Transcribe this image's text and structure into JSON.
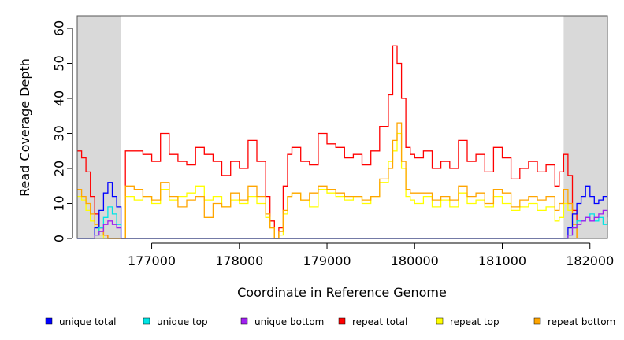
{
  "chart_data": {
    "type": "line",
    "title": "",
    "xlabel": "Coordinate in Reference Genome",
    "ylabel": "Read Coverage Depth",
    "xlim": [
      176150,
      182200
    ],
    "ylim": [
      0,
      64
    ],
    "x_ticks": [
      177000,
      178000,
      179000,
      180000,
      181000,
      182000
    ],
    "x_tick_labels": [
      "177000",
      "178000",
      "179000",
      "180000",
      "181000",
      "182000"
    ],
    "y_ticks": [
      0,
      10,
      20,
      30,
      40,
      50,
      60
    ],
    "y_tick_labels": [
      "0",
      "10",
      "20",
      "30",
      "40",
      "50",
      "60"
    ],
    "shaded_regions": [
      {
        "x": [
          176150,
          176650
        ],
        "color": "#d9d9d9"
      },
      {
        "x": [
          181700,
          182200
        ],
        "color": "#d9d9d9"
      }
    ],
    "legend_position": "bottom",
    "series": [
      {
        "name": "repeat total",
        "color": "#ff0000",
        "x": [
          176150,
          176200,
          176250,
          176300,
          176350,
          176400,
          176450,
          176500,
          176550,
          176600,
          176650,
          176700,
          176800,
          176900,
          177000,
          177100,
          177200,
          177300,
          177400,
          177500,
          177600,
          177700,
          177800,
          177900,
          178000,
          178100,
          178200,
          178300,
          178350,
          178400,
          178450,
          178500,
          178550,
          178600,
          178700,
          178800,
          178900,
          179000,
          179100,
          179200,
          179300,
          179400,
          179500,
          179600,
          179700,
          179750,
          179800,
          179850,
          179900,
          179950,
          180000,
          180100,
          180200,
          180300,
          180400,
          180500,
          180600,
          180700,
          180800,
          180900,
          181000,
          181100,
          181200,
          181300,
          181400,
          181500,
          181600,
          181650,
          181700,
          181750,
          181800,
          181850
        ],
        "values": [
          25,
          23,
          19,
          12,
          7,
          3,
          1,
          0,
          0,
          0,
          0,
          25,
          25,
          24,
          22,
          30,
          24,
          22,
          21,
          26,
          24,
          22,
          18,
          22,
          20,
          28,
          22,
          12,
          5,
          0,
          3,
          15,
          24,
          26,
          22,
          21,
          30,
          27,
          26,
          23,
          24,
          21,
          25,
          32,
          41,
          55,
          50,
          40,
          26,
          24,
          23,
          25,
          20,
          22,
          20,
          28,
          22,
          24,
          19,
          26,
          23,
          17,
          20,
          22,
          19,
          21,
          15,
          19,
          24,
          18,
          8,
          0
        ]
      },
      {
        "name": "repeat top",
        "color": "#ffff00",
        "x": [
          176150,
          176200,
          176250,
          176300,
          176350,
          176400,
          176450,
          176500,
          176550,
          176600,
          176650,
          176700,
          176800,
          176900,
          177000,
          177100,
          177200,
          177300,
          177400,
          177500,
          177600,
          177700,
          177800,
          177900,
          178000,
          178100,
          178200,
          178300,
          178350,
          178400,
          178450,
          178500,
          178550,
          178600,
          178700,
          178800,
          178900,
          179000,
          179100,
          179200,
          179300,
          179400,
          179500,
          179600,
          179700,
          179750,
          179800,
          179850,
          179900,
          179950,
          180000,
          180100,
          180200,
          180300,
          180400,
          180500,
          180600,
          180700,
          180800,
          180900,
          181000,
          181100,
          181200,
          181300,
          181400,
          181500,
          181600,
          181650,
          181700,
          181750,
          181800,
          181850
        ],
        "values": [
          12,
          11,
          8,
          5,
          3,
          1,
          0,
          0,
          0,
          0,
          0,
          12,
          11,
          12,
          10,
          14,
          11,
          12,
          13,
          15,
          11,
          12,
          9,
          11,
          10,
          12,
          10,
          6,
          3,
          0,
          1,
          7,
          12,
          13,
          11,
          9,
          14,
          13,
          12,
          11,
          12,
          10,
          12,
          16,
          22,
          25,
          30,
          20,
          12,
          11,
          10,
          12,
          9,
          11,
          9,
          13,
          10,
          11,
          9,
          12,
          10,
          8,
          9,
          10,
          8,
          9,
          5,
          6,
          10,
          8,
          3,
          0
        ]
      },
      {
        "name": "repeat bottom",
        "color": "#ffa500",
        "x": [
          176150,
          176200,
          176250,
          176300,
          176350,
          176400,
          176450,
          176500,
          176550,
          176600,
          176650,
          176700,
          176800,
          176900,
          177000,
          177100,
          177200,
          177300,
          177400,
          177500,
          177600,
          177700,
          177800,
          177900,
          178000,
          178100,
          178200,
          178300,
          178350,
          178400,
          178450,
          178500,
          178550,
          178600,
          178700,
          178800,
          178900,
          179000,
          179100,
          179200,
          179300,
          179400,
          179500,
          179600,
          179700,
          179750,
          179800,
          179850,
          179900,
          179950,
          180000,
          180100,
          180200,
          180300,
          180400,
          180500,
          180600,
          180700,
          180800,
          180900,
          181000,
          181100,
          181200,
          181300,
          181400,
          181500,
          181600,
          181650,
          181700,
          181750,
          181800,
          181850
        ],
        "values": [
          14,
          12,
          10,
          7,
          4,
          2,
          1,
          0,
          0,
          0,
          0,
          15,
          14,
          12,
          11,
          16,
          12,
          9,
          11,
          12,
          6,
          10,
          9,
          13,
          11,
          15,
          12,
          7,
          3,
          0,
          2,
          8,
          12,
          13,
          11,
          13,
          15,
          14,
          13,
          12,
          12,
          11,
          12,
          17,
          20,
          28,
          33,
          22,
          14,
          13,
          13,
          13,
          11,
          12,
          11,
          15,
          12,
          13,
          10,
          14,
          13,
          9,
          11,
          12,
          11,
          12,
          8,
          10,
          14,
          10,
          4,
          0
        ]
      },
      {
        "name": "unique total",
        "color": "#0000ff",
        "x": [
          176150,
          176200,
          176250,
          176300,
          176350,
          176400,
          176450,
          176500,
          176550,
          176600,
          176650,
          176700,
          177000,
          178000,
          179000,
          180000,
          181000,
          181650,
          181700,
          181750,
          181800,
          181850,
          181900,
          181950,
          182000,
          182050,
          182100,
          182150,
          182200
        ],
        "values": [
          0,
          0,
          0,
          0,
          3,
          8,
          13,
          16,
          12,
          9,
          0,
          0,
          0,
          0,
          0,
          0,
          0,
          0,
          0,
          3,
          7,
          10,
          12,
          15,
          12,
          10,
          11,
          12,
          12
        ]
      },
      {
        "name": "unique top",
        "color": "#00e5e5",
        "x": [
          176150,
          176300,
          176350,
          176400,
          176450,
          176500,
          176550,
          176600,
          176650,
          176700,
          177000,
          178000,
          179000,
          180000,
          181000,
          181650,
          181700,
          181750,
          181800,
          181850,
          181900,
          181950,
          182000,
          182050,
          182100,
          182150,
          182200
        ],
        "values": [
          0,
          0,
          1,
          3,
          6,
          9,
          7,
          4,
          0,
          0,
          0,
          0,
          0,
          0,
          0,
          0,
          0,
          1,
          3,
          5,
          5,
          6,
          7,
          5,
          6,
          4,
          5
        ]
      },
      {
        "name": "unique bottom",
        "color": "#a020f0",
        "x": [
          176150,
          176300,
          176350,
          176400,
          176450,
          176500,
          176550,
          176600,
          176650,
          176700,
          177000,
          178000,
          179000,
          180000,
          181000,
          181650,
          181700,
          181750,
          181800,
          181850,
          181900,
          181950,
          182000,
          182050,
          182100,
          182150,
          182200
        ],
        "values": [
          0,
          0,
          1,
          2,
          4,
          5,
          4,
          3,
          0,
          0,
          0,
          0,
          0,
          0,
          0,
          0,
          0,
          1,
          3,
          4,
          5,
          6,
          5,
          6,
          7,
          8,
          6
        ]
      }
    ]
  },
  "legend": {
    "items": [
      {
        "label": "unique total",
        "color": "#0000ff"
      },
      {
        "label": "unique top",
        "color": "#00e5e5"
      },
      {
        "label": "unique bottom",
        "color": "#a020f0"
      },
      {
        "label": "repeat total",
        "color": "#ff0000"
      },
      {
        "label": "repeat top",
        "color": "#ffff00"
      },
      {
        "label": "repeat bottom",
        "color": "#ffa500"
      }
    ]
  }
}
